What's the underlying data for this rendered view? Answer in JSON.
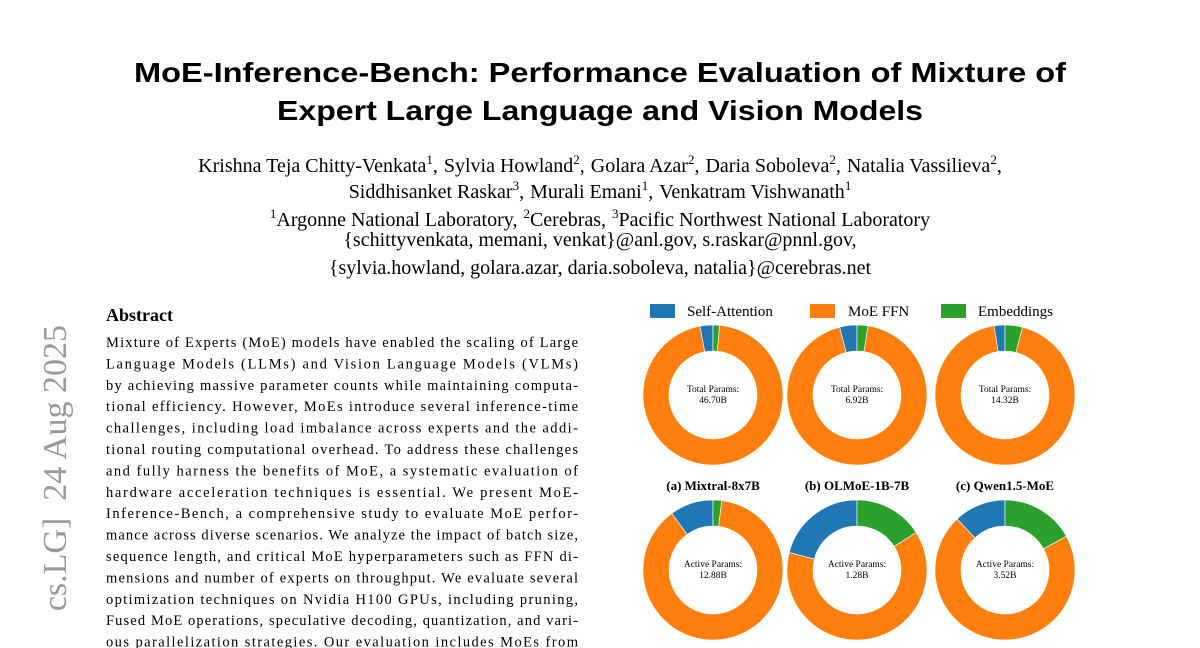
{
  "sidebar": "cs.LG]  24 Aug 2025",
  "header": {
    "title_lines": [
      "MoE-Inference-Bench: Performance Evaluation of Mixture of",
      "Expert Large Language and Vision Models"
    ]
  },
  "authors": {
    "lines": [
      [
        {
          "name": "Krishna Teja Chitty-Venkata",
          "affiliation": "1",
          "suffix": ","
        },
        {
          "name": "Sylvia Howland",
          "affiliation": "2",
          "suffix": ","
        },
        {
          "name": "Golara Azar",
          "affiliation": "2",
          "suffix": ","
        },
        {
          "name": "Daria Soboleva",
          "affiliation": "2",
          "suffix": ","
        },
        {
          "name": "Natalia Vassilieva",
          "affiliation": "2",
          "suffix": ","
        }
      ],
      [
        {
          "name": "Siddhisanket Raskar",
          "affiliation": "3",
          "suffix": ","
        },
        {
          "name": "Murali Emani",
          "affiliation": "1",
          "suffix": ","
        },
        {
          "name": "Venkatram Vishwanath",
          "affiliation": "1"
        }
      ]
    ]
  },
  "affiliations": [
    {
      "mark": "1",
      "name": "Argonne National Laboratory",
      "suffix": ","
    },
    {
      "mark": "2",
      "name": "Cerebras",
      "suffix": ","
    },
    {
      "mark": "3",
      "name": "Pacific Northwest National Laboratory"
    }
  ],
  "emails": [
    "{schittyvenkata, memani, venkat}@anl.gov, s.raskar@pnnl.gov,",
    "{sylvia.howland, golara.azar, daria.soboleva, natalia}@cerebras.net"
  ],
  "abstract": {
    "heading": "Abstract",
    "lines": [
      "Mixture of Experts (MoE) models have enabled the scaling of Large",
      "Language Models (LLMs) and Vision Language Models (VLMs)",
      "by achieving massive parameter counts while maintaining computa-",
      "tional efficiency. However, MoEs introduce several inference-time",
      "challenges, including load imbalance across experts and the addi-",
      "tional routing computational overhead. To address these challenges",
      "and fully harness the benefits of MoE, a systematic evaluation of",
      "hardware acceleration techniques is essential. We present MoE-",
      "Inference-Bench, a comprehensive study to evaluate MoE perfor-",
      "mance across diverse scenarios. We analyze the impact of batch size,",
      "sequence length, and critical MoE hyperparameters such as FFN di-",
      "mensions and number of experts on throughput. We evaluate several",
      "optimization techniques on Nvidia H100 GPUs, including pruning,",
      "Fused MoE operations, speculative decoding, quantization, and vari-",
      "ous parallelization strategies. Our evaluation includes MoEs from"
    ]
  },
  "legend": {
    "labels": [
      "Self-Attention",
      "MoE FFN",
      "Embeddings"
    ],
    "colors": [
      "#1f77b4",
      "#ff7f0e",
      "#2ca02c"
    ]
  },
  "chart_data": [
    {
      "type": "pie",
      "center_title": "Total Params:",
      "center_value": "46.70B",
      "values": [
        3,
        95.5,
        1.5
      ],
      "caption": "(a) Mixtral-8x7B"
    },
    {
      "type": "pie",
      "center_title": "Total Params:",
      "center_value": "6.92B",
      "values": [
        4,
        93.5,
        2.5
      ],
      "caption": "(b) OLMoE-1B-7B"
    },
    {
      "type": "pie",
      "center_title": "Total Params:",
      "center_value": "14.32B",
      "values": [
        2.5,
        93.5,
        4
      ],
      "caption": "(c) Qwen1.5-MoE"
    },
    {
      "type": "pie",
      "center_title": "Active Params:",
      "center_value": "12.88B",
      "values": [
        10,
        88,
        2
      ]
    },
    {
      "type": "pie",
      "center_title": "Active Params:",
      "center_value": "1.28B",
      "values": [
        21,
        63,
        16
      ]
    },
    {
      "type": "pie",
      "center_title": "Active Params:",
      "center_value": "3.52B",
      "values": [
        12,
        71,
        17
      ]
    }
  ]
}
